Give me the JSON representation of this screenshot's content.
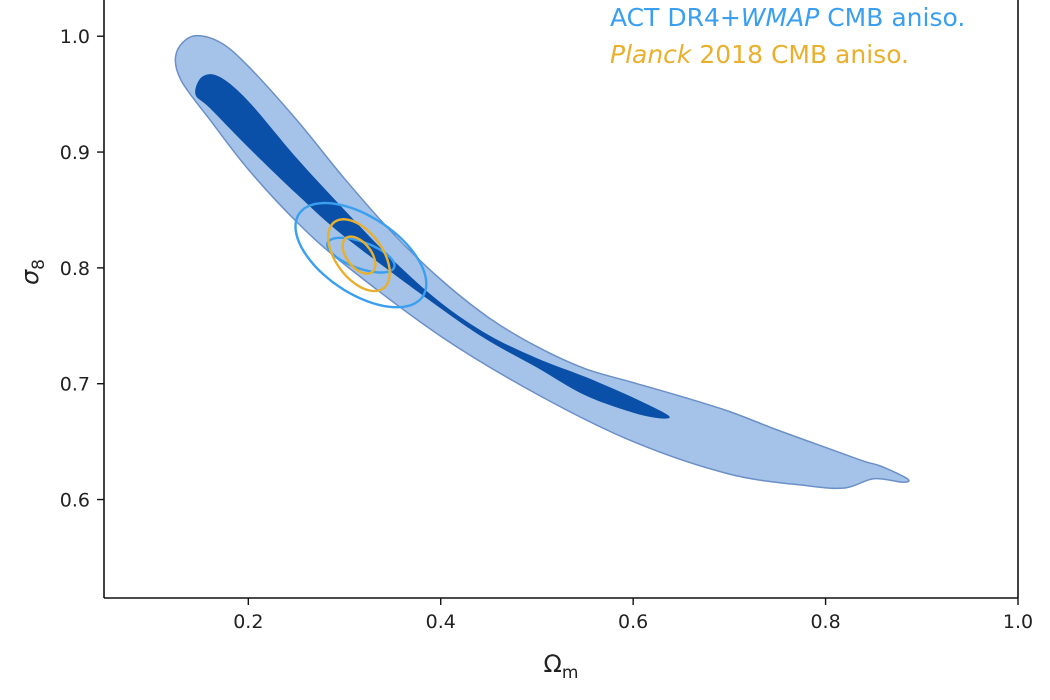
{
  "chart_data": {
    "type": "contour",
    "title": "",
    "xlabel": "Ωm",
    "ylabel": "σ8",
    "xlim": [
      0.05,
      1.0
    ],
    "ylim": [
      0.515,
      1.033
    ],
    "grid": false,
    "legend_position": "top-right",
    "x_ticks": [
      0.2,
      0.4,
      0.6,
      0.8,
      1.0
    ],
    "x_tick_labels": [
      "0.2",
      "0.4",
      "0.6",
      "0.8",
      "1.0"
    ],
    "y_ticks": [
      0.6,
      0.7,
      0.8,
      0.9,
      1.0
    ],
    "y_tick_labels": [
      "0.6",
      "0.7",
      "0.8",
      "0.9",
      "1.0"
    ],
    "series": [
      {
        "name": "",
        "style": "filled-contours",
        "color_outer": "#a5c3e8",
        "color_inner": "#0a4fa8",
        "edge_color": "#6b90c8",
        "contour_outer": [
          [
            0.142,
            1.0
          ],
          [
            0.17,
            0.995
          ],
          [
            0.2,
            0.974
          ],
          [
            0.25,
            0.928
          ],
          [
            0.3,
            0.877
          ],
          [
            0.35,
            0.83
          ],
          [
            0.4,
            0.79
          ],
          [
            0.45,
            0.757
          ],
          [
            0.5,
            0.732
          ],
          [
            0.55,
            0.713
          ],
          [
            0.6,
            0.701
          ],
          [
            0.65,
            0.689
          ],
          [
            0.7,
            0.676
          ],
          [
            0.75,
            0.66
          ],
          [
            0.8,
            0.645
          ],
          [
            0.84,
            0.633
          ],
          [
            0.857,
            0.629
          ],
          [
            0.885,
            0.618
          ],
          [
            0.88,
            0.615
          ],
          [
            0.85,
            0.618
          ],
          [
            0.82,
            0.61
          ],
          [
            0.78,
            0.612
          ],
          [
            0.7,
            0.622
          ],
          [
            0.6,
            0.65
          ],
          [
            0.5,
            0.691
          ],
          [
            0.4,
            0.741
          ],
          [
            0.3,
            0.803
          ],
          [
            0.25,
            0.84
          ],
          [
            0.2,
            0.885
          ],
          [
            0.16,
            0.928
          ],
          [
            0.13,
            0.962
          ],
          [
            0.125,
            0.985
          ]
        ],
        "contour_inner": [
          [
            0.152,
            0.965
          ],
          [
            0.17,
            0.965
          ],
          [
            0.2,
            0.944
          ],
          [
            0.25,
            0.895
          ],
          [
            0.3,
            0.85
          ],
          [
            0.35,
            0.807
          ],
          [
            0.4,
            0.77
          ],
          [
            0.45,
            0.742
          ],
          [
            0.5,
            0.722
          ],
          [
            0.55,
            0.706
          ],
          [
            0.6,
            0.688
          ],
          [
            0.636,
            0.673
          ],
          [
            0.63,
            0.67
          ],
          [
            0.6,
            0.675
          ],
          [
            0.55,
            0.69
          ],
          [
            0.5,
            0.714
          ],
          [
            0.45,
            0.737
          ],
          [
            0.4,
            0.765
          ],
          [
            0.3,
            0.827
          ],
          [
            0.25,
            0.864
          ],
          [
            0.2,
            0.904
          ],
          [
            0.16,
            0.938
          ],
          [
            0.145,
            0.95
          ]
        ]
      },
      {
        "name": "ACT DR4+WMAP CMB aniso.",
        "style": "contour-lines",
        "color": "#3a9ff0",
        "ellipses": [
          {
            "center": [
              0.317,
              0.811
            ],
            "sigma_x": 0.0175,
            "sigma_y": 0.0075,
            "rho": -0.6
          },
          {
            "center": [
              0.317,
              0.811
            ],
            "sigma_x": 0.034,
            "sigma_y": 0.0225,
            "rho": -0.55
          }
        ]
      },
      {
        "name": "Planck 2018 CMB aniso.",
        "style": "contour-lines",
        "color": "#e8b02c",
        "ellipses": [
          {
            "center": [
              0.315,
              0.811
            ],
            "sigma_x": 0.0085,
            "sigma_y": 0.008,
            "rho": -0.5
          },
          {
            "center": [
              0.315,
              0.811
            ],
            "sigma_x": 0.016,
            "sigma_y": 0.0155,
            "rho": -0.5
          }
        ]
      }
    ],
    "legend": [
      {
        "parts": [
          {
            "text": "ACT DR4+",
            "italic": false
          },
          {
            "text": "WMAP",
            "italic": true
          },
          {
            "text": " CMB aniso.",
            "italic": false
          }
        ],
        "color": "#3a9ff0"
      },
      {
        "parts": [
          {
            "text": "Planck",
            "italic": true
          },
          {
            "text": " 2018 CMB aniso.",
            "italic": false
          }
        ],
        "color": "#e8b02c"
      }
    ],
    "axis_label_parts": {
      "x": {
        "base": "Ω",
        "sub": "m"
      },
      "y": {
        "base": "σ",
        "sub": "8"
      }
    }
  }
}
